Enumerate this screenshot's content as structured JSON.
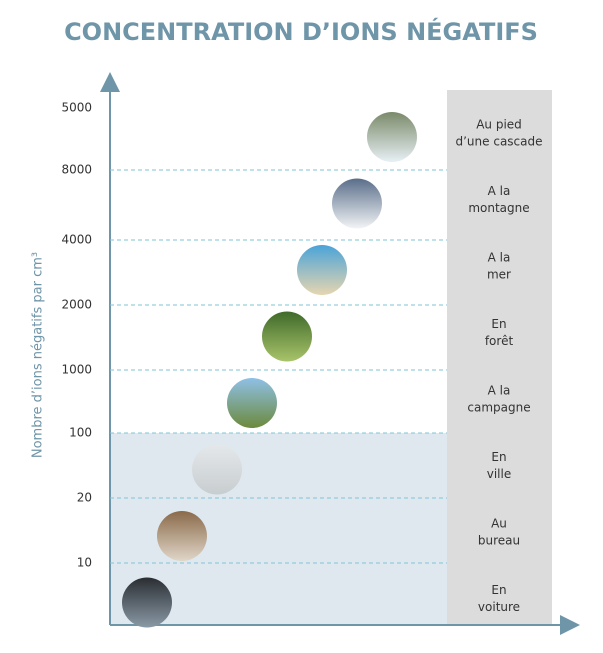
{
  "title": "CONCENTRATION D’IONS NÉGATIFS",
  "axis_label": "Nombre d’ions négatifs par cm³",
  "ticks": [
    "5000",
    "8000",
    "4000",
    "2000",
    "1000",
    "100",
    "20",
    "10"
  ],
  "rows": [
    [
      "Au pied",
      "d’une cascade"
    ],
    [
      "A la",
      "montagne"
    ],
    [
      "A la",
      "mer"
    ],
    [
      "En",
      "forêt"
    ],
    [
      "A la",
      "campagne"
    ],
    [
      "En",
      "ville"
    ],
    [
      "Au",
      "bureau"
    ],
    [
      "En",
      "voiture"
    ]
  ]
}
